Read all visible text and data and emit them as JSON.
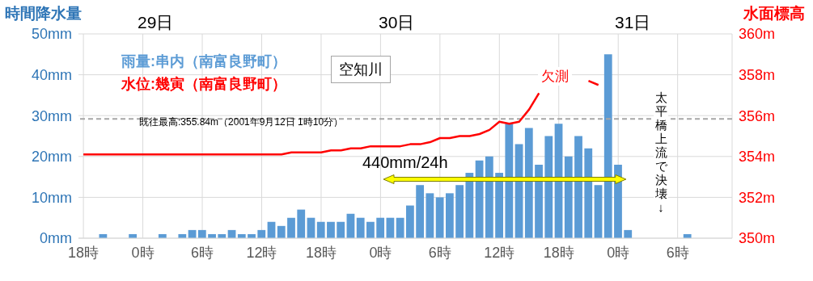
{
  "chart_data": {
    "type": "bar",
    "ylabel": "時間降水量",
    "y2label": "水面標高",
    "annotations": [
      "29日",
      "30日",
      "31日",
      "空知川",
      "欠測",
      "440mm/24h",
      "太平橋上流で決壊↓"
    ],
    "categories": [
      "18時",
      null,
      null,
      null,
      null,
      null,
      "0時",
      null,
      null,
      null,
      null,
      null,
      "6時",
      null,
      null,
      null,
      null,
      null,
      "12時",
      null,
      null,
      null,
      null,
      null,
      "18時",
      null,
      null,
      null,
      null,
      null,
      "0時",
      null,
      null,
      null,
      null,
      null,
      "6時",
      null,
      null,
      null,
      null,
      null,
      "12時",
      null,
      null,
      null,
      null,
      null,
      "18時",
      null,
      null,
      null,
      null,
      null,
      "0時",
      null,
      null,
      null,
      null,
      null,
      "6時",
      null,
      null,
      null,
      null,
      null
    ],
    "series": [
      {
        "name": "雨量:串内（南富良野町）",
        "color": "#5b9bd5",
        "values": [
          0,
          0,
          1,
          0,
          0,
          1,
          0,
          0,
          1,
          0,
          1,
          2,
          2,
          1,
          1,
          2,
          1,
          1,
          2,
          4,
          3,
          5,
          7,
          5,
          4,
          4,
          4,
          6,
          5,
          4,
          5,
          5,
          5,
          8,
          13,
          11,
          10,
          11,
          13,
          16,
          19,
          20,
          16,
          28,
          23,
          27,
          18,
          25,
          28,
          20,
          25,
          22,
          13,
          45,
          18,
          2,
          0,
          0,
          0,
          0,
          0,
          1,
          0,
          0,
          0,
          0
        ]
      },
      {
        "name": "水位:幾寅（南富良野町）",
        "type": "line",
        "axis": "y2",
        "color": "#ff0000",
        "values": [
          354.1,
          354.1,
          354.1,
          354.1,
          354.1,
          354.1,
          354.1,
          354.1,
          354.1,
          354.1,
          354.1,
          354.1,
          354.1,
          354.1,
          354.1,
          354.1,
          354.1,
          354.1,
          354.1,
          354.1,
          354.1,
          354.2,
          354.2,
          354.2,
          354.2,
          354.3,
          354.3,
          354.4,
          354.4,
          354.5,
          354.5,
          354.5,
          354.5,
          354.6,
          354.6,
          354.7,
          354.9,
          354.9,
          355.0,
          355.0,
          355.1,
          355.3,
          355.7,
          355.6,
          355.7,
          356.3,
          357.1,
          null,
          null,
          null,
          null,
          357.7,
          357.5,
          null,
          null,
          null,
          null,
          null,
          null,
          null,
          null,
          null,
          null,
          null,
          null,
          null
        ]
      }
    ],
    "ylim": [
      0,
      50
    ],
    "yticks": [
      {
        "value": 0,
        "label": "0mm"
      },
      {
        "value": 10,
        "label": "10mm"
      },
      {
        "value": 20,
        "label": "20mm"
      },
      {
        "value": 30,
        "label": "30mm"
      },
      {
        "value": 40,
        "label": "40mm"
      },
      {
        "value": 50,
        "label": "50mm"
      }
    ],
    "y2lim": [
      350,
      360
    ],
    "y2ticks": [
      {
        "value": 350,
        "label": "350m"
      },
      {
        "value": 352,
        "label": "352m"
      },
      {
        "value": 354,
        "label": "354m"
      },
      {
        "value": 356,
        "label": "356m"
      },
      {
        "value": 358,
        "label": "358m"
      },
      {
        "value": 360,
        "label": "360m"
      }
    ],
    "ref_lines": [
      {
        "axis": "y2",
        "value": 355.84,
        "label": "既往最高:355.84m（2001年9月12日 1時10分）",
        "color": "#a6a6a6",
        "line_style": "dashed"
      }
    ],
    "grid": true,
    "legend": "top left",
    "marker": "none",
    "line_style": "solid"
  }
}
